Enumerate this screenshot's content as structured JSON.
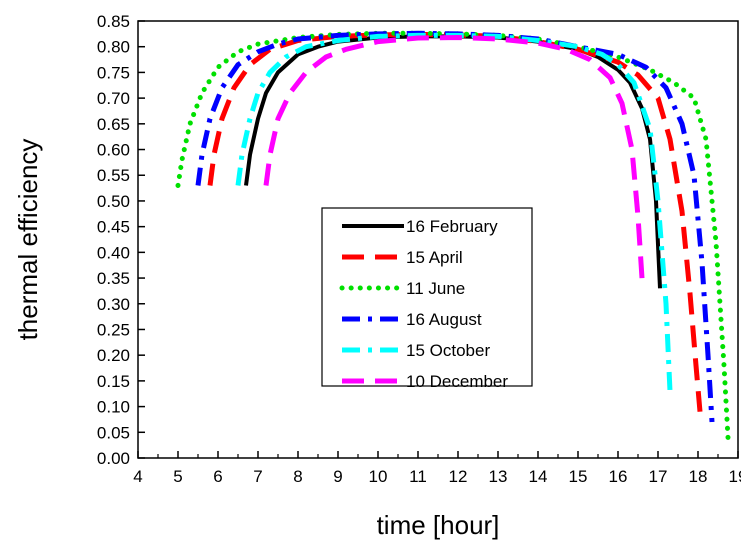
{
  "chart_data": {
    "type": "line",
    "xlabel": "time [hour]",
    "ylabel": "thermal efficiency",
    "xlim": [
      4,
      19
    ],
    "ylim": [
      0,
      0.85
    ],
    "xticks": [
      4,
      5,
      6,
      7,
      8,
      9,
      10,
      11,
      12,
      13,
      14,
      15,
      16,
      17,
      18,
      19
    ],
    "yticks": [
      0.0,
      0.05,
      0.1,
      0.15,
      0.2,
      0.25,
      0.3,
      0.35,
      0.4,
      0.45,
      0.5,
      0.55,
      0.6,
      0.65,
      0.7,
      0.75,
      0.8,
      0.85
    ],
    "grid": false,
    "legend_position": "center-right",
    "series": [
      {
        "name": "16 February",
        "color": "#000000",
        "dash": "solid",
        "x": [
          6.7,
          6.8,
          7.0,
          7.2,
          7.5,
          8.0,
          8.5,
          9.0,
          10.0,
          11.0,
          12.0,
          13.0,
          14.0,
          15.0,
          15.5,
          16.0,
          16.3,
          16.6,
          16.8,
          16.95,
          17.05
        ],
        "y": [
          0.53,
          0.59,
          0.66,
          0.71,
          0.75,
          0.785,
          0.8,
          0.81,
          0.818,
          0.82,
          0.82,
          0.818,
          0.81,
          0.795,
          0.78,
          0.755,
          0.73,
          0.68,
          0.62,
          0.5,
          0.33
        ]
      },
      {
        "name": "15 April",
        "color": "#ff0000",
        "dash": "dash",
        "x": [
          5.8,
          5.9,
          6.1,
          6.4,
          6.8,
          7.3,
          8.0,
          9.0,
          10.0,
          11.0,
          12.0,
          13.0,
          14.0,
          15.0,
          16.0,
          16.5,
          17.0,
          17.3,
          17.6,
          17.8,
          17.95,
          18.05
        ],
        "y": [
          0.53,
          0.59,
          0.66,
          0.72,
          0.765,
          0.795,
          0.812,
          0.82,
          0.823,
          0.824,
          0.823,
          0.82,
          0.81,
          0.795,
          0.77,
          0.745,
          0.7,
          0.62,
          0.48,
          0.32,
          0.18,
          0.09
        ]
      },
      {
        "name": "11 June",
        "color": "#00e000",
        "dash": "dot",
        "x": [
          5.0,
          5.1,
          5.3,
          5.6,
          6.0,
          6.5,
          7.0,
          8.0,
          9.0,
          10.0,
          11.0,
          12.0,
          13.0,
          14.0,
          15.0,
          16.0,
          16.8,
          17.4,
          17.9,
          18.2,
          18.45,
          18.65,
          18.75
        ],
        "y": [
          0.53,
          0.58,
          0.65,
          0.71,
          0.76,
          0.79,
          0.805,
          0.818,
          0.824,
          0.826,
          0.826,
          0.825,
          0.822,
          0.815,
          0.8,
          0.78,
          0.755,
          0.73,
          0.7,
          0.62,
          0.42,
          0.18,
          0.04
        ]
      },
      {
        "name": "16 August",
        "color": "#0000ff",
        "dash": "dashdot",
        "x": [
          5.5,
          5.6,
          5.8,
          6.1,
          6.5,
          7.0,
          7.5,
          8.0,
          9.0,
          10.0,
          11.0,
          12.0,
          13.0,
          14.0,
          15.0,
          16.0,
          16.7,
          17.2,
          17.6,
          17.9,
          18.1,
          18.25,
          18.35
        ],
        "y": [
          0.53,
          0.59,
          0.66,
          0.72,
          0.765,
          0.79,
          0.805,
          0.815,
          0.822,
          0.825,
          0.826,
          0.825,
          0.822,
          0.815,
          0.8,
          0.785,
          0.76,
          0.72,
          0.65,
          0.55,
          0.38,
          0.2,
          0.07
        ]
      },
      {
        "name": "15 October",
        "color": "#00ffff",
        "dash": "dashdot",
        "x": [
          6.5,
          6.6,
          6.8,
          7.0,
          7.3,
          7.7,
          8.2,
          9.0,
          10.0,
          11.0,
          12.0,
          13.0,
          14.0,
          15.0,
          15.6,
          16.0,
          16.4,
          16.8,
          17.0,
          17.2,
          17.3
        ],
        "y": [
          0.53,
          0.59,
          0.66,
          0.71,
          0.75,
          0.78,
          0.8,
          0.812,
          0.82,
          0.822,
          0.822,
          0.82,
          0.812,
          0.8,
          0.785,
          0.765,
          0.73,
          0.64,
          0.5,
          0.3,
          0.13
        ]
      },
      {
        "name": "10 December",
        "color": "#ff00ff",
        "dash": "dash",
        "x": [
          7.2,
          7.3,
          7.5,
          7.8,
          8.2,
          8.7,
          9.2,
          10.0,
          11.0,
          12.0,
          13.0,
          14.0,
          14.7,
          15.3,
          15.8,
          16.1,
          16.35,
          16.5,
          16.6
        ],
        "y": [
          0.53,
          0.59,
          0.66,
          0.71,
          0.75,
          0.78,
          0.795,
          0.81,
          0.817,
          0.818,
          0.815,
          0.807,
          0.795,
          0.775,
          0.74,
          0.69,
          0.6,
          0.47,
          0.35
        ]
      }
    ]
  }
}
